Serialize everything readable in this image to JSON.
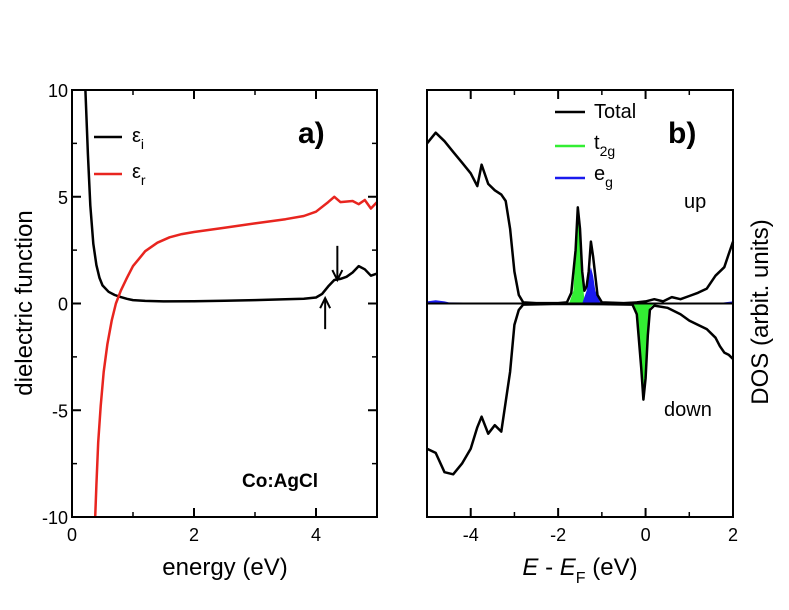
{
  "chart_data": [
    {
      "type": "line",
      "panel": "a)",
      "xlabel": "energy (eV)",
      "ylabel": "dielectric function",
      "xlim": [
        0,
        5
      ],
      "ylim": [
        -10,
        10
      ],
      "xticks": [
        0,
        2,
        4
      ],
      "yticks": [
        -10,
        -5,
        0,
        5,
        10
      ],
      "xtick_labels": [
        "0",
        "2",
        "4"
      ],
      "ytick_labels": [
        "-10",
        "-5",
        "0",
        "5",
        "10"
      ],
      "legend": [
        {
          "symbol": "ε",
          "sub": "i",
          "color": "#000000"
        },
        {
          "symbol": "ε",
          "sub": "r",
          "color": "#e8251f"
        }
      ],
      "annotation": "Co:AgCl",
      "arrows": [
        {
          "x": 4.35,
          "y_from": 2.7,
          "y_to": 1.1,
          "direction": "down"
        },
        {
          "x": 4.15,
          "y_from": -1.2,
          "y_to": 0.25,
          "direction": "up"
        }
      ],
      "series": [
        {
          "name": "ε_i",
          "color": "#000000",
          "points": [
            [
              0.22,
              10
            ],
            [
              0.26,
              7
            ],
            [
              0.3,
              4.6
            ],
            [
              0.35,
              2.8
            ],
            [
              0.4,
              1.8
            ],
            [
              0.45,
              1.2
            ],
            [
              0.5,
              0.85
            ],
            [
              0.6,
              0.55
            ],
            [
              0.7,
              0.4
            ],
            [
              0.8,
              0.3
            ],
            [
              0.9,
              0.22
            ],
            [
              1.0,
              0.16
            ],
            [
              1.2,
              0.12
            ],
            [
              1.5,
              0.1
            ],
            [
              2.0,
              0.11
            ],
            [
              2.5,
              0.13
            ],
            [
              3.0,
              0.16
            ],
            [
              3.5,
              0.2
            ],
            [
              3.8,
              0.22
            ],
            [
              4.0,
              0.28
            ],
            [
              4.1,
              0.45
            ],
            [
              4.2,
              0.8
            ],
            [
              4.3,
              1.1
            ],
            [
              4.4,
              1.15
            ],
            [
              4.5,
              1.25
            ],
            [
              4.6,
              1.45
            ],
            [
              4.7,
              1.75
            ],
            [
              4.8,
              1.6
            ],
            [
              4.9,
              1.3
            ],
            [
              5.0,
              1.4
            ]
          ]
        },
        {
          "name": "ε_r",
          "color": "#e8251f",
          "points": [
            [
              0.38,
              -10
            ],
            [
              0.4,
              -8.5
            ],
            [
              0.43,
              -6.5
            ],
            [
              0.47,
              -4.8
            ],
            [
              0.52,
              -3.2
            ],
            [
              0.58,
              -1.9
            ],
            [
              0.65,
              -0.8
            ],
            [
              0.72,
              0.0
            ],
            [
              0.8,
              0.6
            ],
            [
              0.9,
              1.2
            ],
            [
              1.0,
              1.75
            ],
            [
              1.1,
              2.1
            ],
            [
              1.2,
              2.45
            ],
            [
              1.4,
              2.85
            ],
            [
              1.6,
              3.1
            ],
            [
              1.8,
              3.25
            ],
            [
              2.0,
              3.35
            ],
            [
              2.5,
              3.55
            ],
            [
              3.0,
              3.75
            ],
            [
              3.5,
              3.95
            ],
            [
              3.8,
              4.1
            ],
            [
              4.0,
              4.3
            ],
            [
              4.2,
              4.75
            ],
            [
              4.3,
              5.0
            ],
            [
              4.4,
              4.75
            ],
            [
              4.6,
              4.8
            ],
            [
              4.7,
              4.65
            ],
            [
              4.8,
              4.85
            ],
            [
              4.9,
              4.45
            ],
            [
              5.0,
              4.75
            ]
          ]
        }
      ]
    },
    {
      "type": "area",
      "panel": "b)",
      "xlabel_italic_1": "E",
      "xlabel_mid": " - ",
      "xlabel_italic_2": "E",
      "xlabel_sub": "F",
      "xlabel_tail": " (eV)",
      "ylabel": "DOS (arbit. units)",
      "xlim": [
        -5,
        2
      ],
      "ylim": [
        -10,
        10
      ],
      "xticks": [
        -4,
        -2,
        0,
        2
      ],
      "xtick_labels": [
        "-4",
        "-2",
        "0",
        "2"
      ],
      "legend": [
        {
          "label": "Total",
          "sub": "",
          "color": "#000000"
        },
        {
          "label": "t",
          "sub": "2g",
          "color": "#33ee33"
        },
        {
          "label": "e",
          "sub": "g",
          "color": "#1a1aee"
        }
      ],
      "spin_labels": {
        "up": "up",
        "down": "down"
      },
      "series": [
        {
          "name": "Total",
          "color": "#000000",
          "points": [
            [
              -5,
              7.5
            ],
            [
              -4.8,
              8.0
            ],
            [
              -4.6,
              7.6
            ],
            [
              -4.4,
              7.1
            ],
            [
              -4.2,
              6.6
            ],
            [
              -4.0,
              6.1
            ],
            [
              -3.85,
              5.5
            ],
            [
              -3.75,
              6.5
            ],
            [
              -3.6,
              5.6
            ],
            [
              -3.45,
              5.3
            ],
            [
              -3.3,
              5.1
            ],
            [
              -3.2,
              4.8
            ],
            [
              -3.1,
              3.5
            ],
            [
              -3.0,
              1.5
            ],
            [
              -2.9,
              0.4
            ],
            [
              -2.8,
              0.05
            ],
            [
              -2.5,
              0.02
            ],
            [
              -2.0,
              0.02
            ],
            [
              -1.8,
              0.05
            ],
            [
              -1.7,
              0.5
            ],
            [
              -1.6,
              2.5
            ],
            [
              -1.55,
              4.5
            ],
            [
              -1.5,
              3.5
            ],
            [
              -1.45,
              1.5
            ],
            [
              -1.4,
              0.6
            ],
            [
              -1.35,
              0.8
            ],
            [
              -1.3,
              1.5
            ],
            [
              -1.25,
              2.9
            ],
            [
              -1.2,
              2.2
            ],
            [
              -1.1,
              0.4
            ],
            [
              -1.0,
              0.05
            ],
            [
              -0.5,
              0.02
            ],
            [
              -0.2,
              0.05
            ],
            [
              0.0,
              0.1
            ],
            [
              0.2,
              0.2
            ],
            [
              0.4,
              0.1
            ],
            [
              0.6,
              0.3
            ],
            [
              0.8,
              0.2
            ],
            [
              1.0,
              0.35
            ],
            [
              1.2,
              0.5
            ],
            [
              1.4,
              0.7
            ],
            [
              1.6,
              1.3
            ],
            [
              1.8,
              1.7
            ],
            [
              1.9,
              2.3
            ],
            [
              2.0,
              2.9
            ]
          ]
        },
        {
          "name": "Total (down)",
          "color": "#000000",
          "points": [
            [
              -5,
              -6.8
            ],
            [
              -4.8,
              -7.0
            ],
            [
              -4.6,
              -7.9
            ],
            [
              -4.4,
              -8.0
            ],
            [
              -4.2,
              -7.5
            ],
            [
              -4.0,
              -6.8
            ],
            [
              -3.85,
              -5.8
            ],
            [
              -3.75,
              -5.3
            ],
            [
              -3.6,
              -6.1
            ],
            [
              -3.45,
              -5.7
            ],
            [
              -3.3,
              -6.0
            ],
            [
              -3.2,
              -4.6
            ],
            [
              -3.1,
              -3.2
            ],
            [
              -3.0,
              -1.0
            ],
            [
              -2.9,
              -0.3
            ],
            [
              -2.8,
              -0.05
            ],
            [
              -2.0,
              -0.02
            ],
            [
              -1.0,
              -0.03
            ],
            [
              -0.3,
              -0.05
            ],
            [
              -0.2,
              -0.5
            ],
            [
              -0.1,
              -3.0
            ],
            [
              -0.05,
              -4.5
            ],
            [
              0.0,
              -3.5
            ],
            [
              0.05,
              -1.5
            ],
            [
              0.1,
              -0.3
            ],
            [
              0.2,
              -0.1
            ],
            [
              0.5,
              -0.2
            ],
            [
              0.8,
              -0.5
            ],
            [
              1.0,
              -0.8
            ],
            [
              1.2,
              -1.0
            ],
            [
              1.4,
              -1.2
            ],
            [
              1.6,
              -1.6
            ],
            [
              1.7,
              -2.0
            ],
            [
              1.8,
              -2.3
            ],
            [
              1.9,
              -2.4
            ],
            [
              2.0,
              -2.6
            ]
          ]
        },
        {
          "name": "t2g",
          "color": "#33ee33",
          "fill": true,
          "points": [
            [
              -1.75,
              0
            ],
            [
              -1.65,
              0.6
            ],
            [
              -1.6,
              2.4
            ],
            [
              -1.55,
              4.4
            ],
            [
              -1.5,
              3.3
            ],
            [
              -1.45,
              1.2
            ],
            [
              -1.4,
              0.2
            ],
            [
              -1.3,
              0.0
            ],
            [
              -0.3,
              0
            ],
            [
              -0.2,
              -0.4
            ],
            [
              -0.1,
              -2.8
            ],
            [
              -0.05,
              -4.3
            ],
            [
              0.0,
              -3.3
            ],
            [
              0.05,
              -1.2
            ],
            [
              0.1,
              -0.2
            ],
            [
              0.2,
              0
            ]
          ]
        },
        {
          "name": "eg",
          "color": "#1a1aee",
          "fill": true,
          "points": [
            [
              -5,
              0.1
            ],
            [
              -4.8,
              0.15
            ],
            [
              -4.6,
              0.1
            ],
            [
              -4.5,
              0.05
            ],
            [
              -1.45,
              0
            ],
            [
              -1.35,
              0.6
            ],
            [
              -1.3,
              1.3
            ],
            [
              -1.25,
              1.7
            ],
            [
              -1.2,
              1.3
            ],
            [
              -1.15,
              0.6
            ],
            [
              -1.05,
              0.1
            ],
            [
              -1.0,
              0
            ],
            [
              1.6,
              0
            ],
            [
              1.8,
              0.05
            ],
            [
              2.0,
              0.1
            ]
          ]
        }
      ]
    }
  ]
}
